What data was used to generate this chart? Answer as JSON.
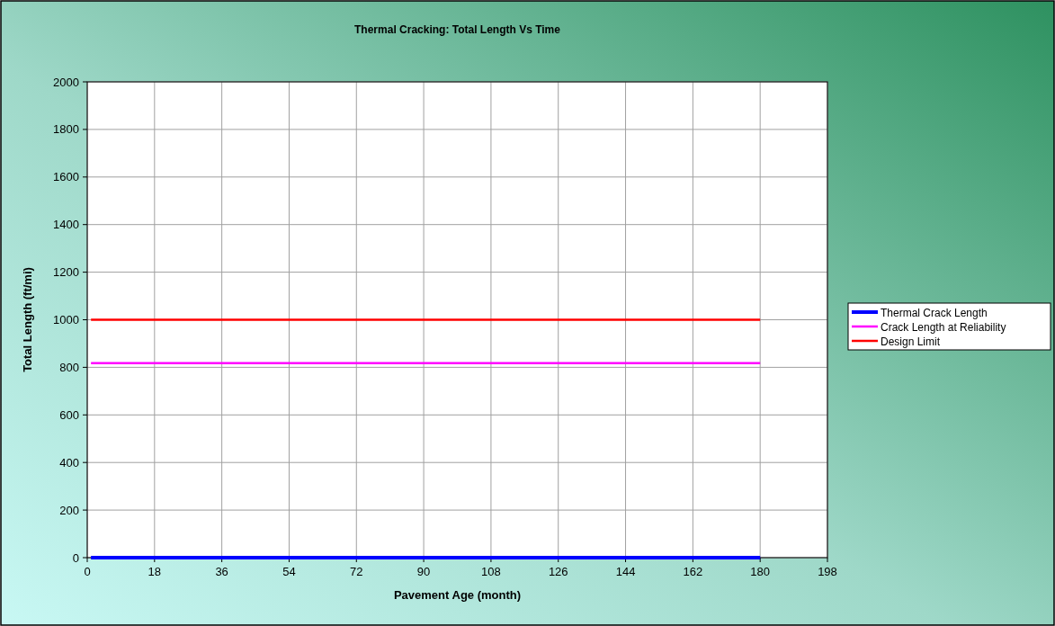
{
  "chart_data": {
    "type": "line",
    "title": "Thermal Cracking: Total Length Vs Time",
    "xlabel": "Pavement Age (month)",
    "ylabel": "Total Length (ft/mi)",
    "series": [
      {
        "name": "Thermal Crack Length",
        "color": "#0000ff",
        "values": [
          0,
          0
        ]
      },
      {
        "name": "Crack Length at Reliability",
        "color": "#ff00ff",
        "values": [
          818,
          818
        ]
      },
      {
        "name": "Design Limit",
        "color": "#ff0000",
        "values": [
          1000,
          1000
        ]
      }
    ],
    "x": [
      1,
      180
    ],
    "xlim": [
      0,
      198
    ],
    "xticks": [
      0,
      18,
      36,
      54,
      72,
      90,
      108,
      126,
      144,
      162,
      180,
      198
    ],
    "ylim": [
      0,
      2000
    ],
    "yticks": [
      0,
      200,
      400,
      600,
      800,
      1000,
      1200,
      1400,
      1600,
      1800,
      2000
    ],
    "grid": true,
    "legend": "right",
    "marker": "none",
    "line_style": "solid"
  }
}
